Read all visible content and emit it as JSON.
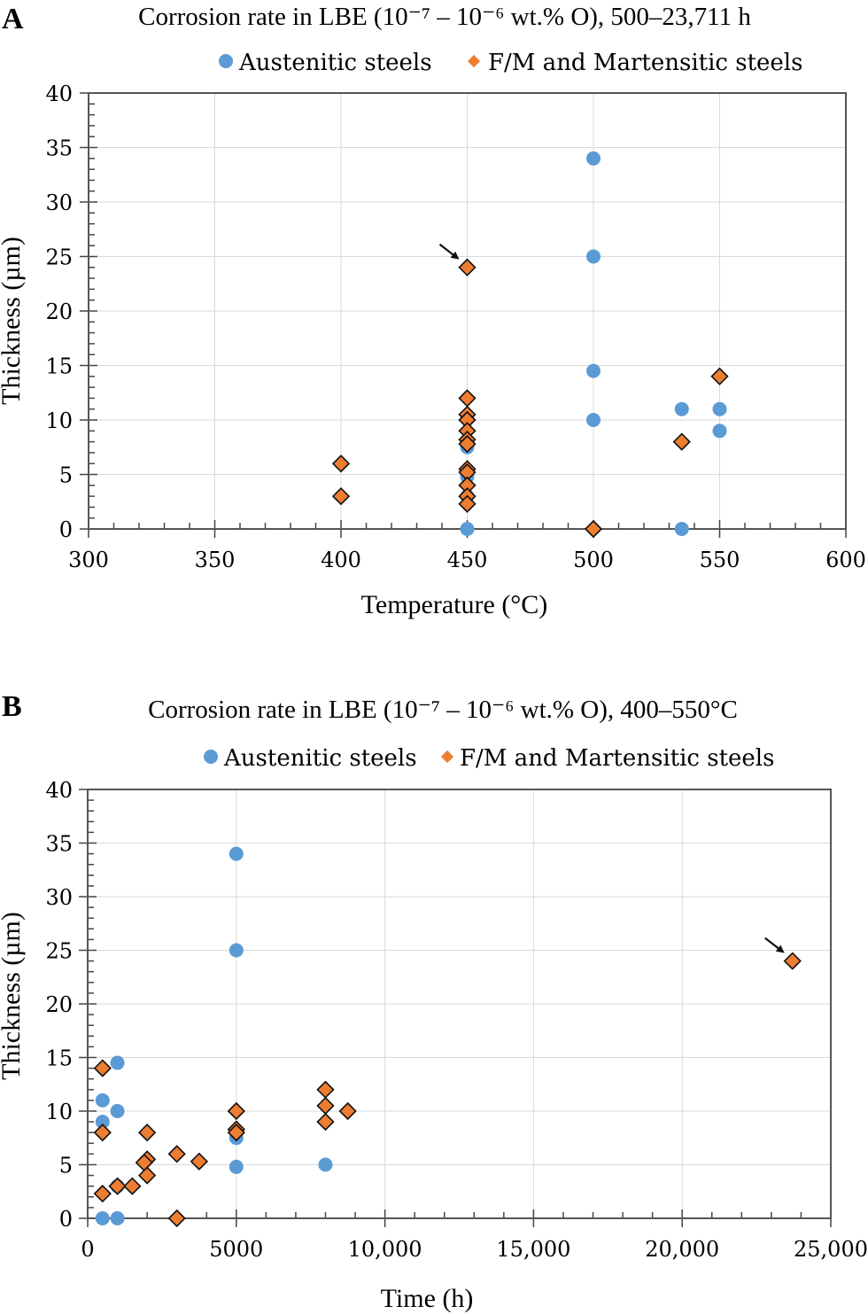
{
  "chart_data": [
    {
      "panel": "A",
      "type": "scatter",
      "title": "Corrosion rate in LBE (10⁻⁷ – 10⁻⁶ wt.% O), 500–23,711 h",
      "xlabel": "Temperature (°C)",
      "ylabel": "Thickness (µm)",
      "xlim": [
        300,
        600
      ],
      "ylim": [
        0,
        40
      ],
      "x_ticks": [
        300,
        350,
        400,
        450,
        500,
        550,
        600
      ],
      "x_tick_labels": [
        "300",
        "350",
        "400",
        "450",
        "500",
        "550",
        "600"
      ],
      "x_minor_step": 10,
      "y_ticks": [
        0,
        5,
        10,
        15,
        20,
        25,
        30,
        35,
        40
      ],
      "y_tick_labels": [
        "0",
        "5",
        "10",
        "15",
        "20",
        "25",
        "30",
        "35",
        "40"
      ],
      "y_minor_step": 1,
      "grid": true,
      "legend": "top-center",
      "series": [
        {
          "name": "Austenitic steels",
          "marker": "circle",
          "color": "#5B9BD5",
          "points": [
            [
              450,
              7.5
            ],
            [
              450,
              4.8
            ],
            [
              450,
              3.0
            ],
            [
              450,
              0
            ],
            [
              500,
              34
            ],
            [
              500,
              25
            ],
            [
              500,
              14.5
            ],
            [
              500,
              10
            ],
            [
              535,
              11
            ],
            [
              535,
              0
            ],
            [
              550,
              11
            ],
            [
              550,
              9
            ]
          ]
        },
        {
          "name": "F/M and Martensitic steels",
          "marker": "diamond",
          "color": "#ED7D31",
          "points": [
            [
              400,
              6
            ],
            [
              400,
              3
            ],
            [
              450,
              24
            ],
            [
              450,
              12
            ],
            [
              450,
              10.5
            ],
            [
              450,
              10
            ],
            [
              450,
              9
            ],
            [
              450,
              8.2
            ],
            [
              450,
              7.8
            ],
            [
              450,
              5.5
            ],
            [
              450,
              5.2
            ],
            [
              450,
              4
            ],
            [
              450,
              3
            ],
            [
              450,
              2.3
            ],
            [
              500,
              0
            ],
            [
              535,
              8
            ],
            [
              550,
              14
            ]
          ]
        }
      ],
      "annotations": [
        {
          "type": "arrow",
          "points_to": [
            450,
            24
          ]
        }
      ]
    },
    {
      "panel": "B",
      "type": "scatter",
      "title": "Corrosion rate in LBE (10⁻⁷ – 10⁻⁶ wt.% O), 400–550°C",
      "xlabel": "Time (h)",
      "ylabel": "Thickness (µm)",
      "xlim": [
        0,
        25000
      ],
      "ylim": [
        0,
        40
      ],
      "x_ticks": [
        0,
        5000,
        10000,
        15000,
        20000,
        25000
      ],
      "x_tick_labels": [
        "0",
        "5000",
        "10,000",
        "15,000",
        "20,000",
        "25,000"
      ],
      "x_minor_step": 1000,
      "y_ticks": [
        0,
        5,
        10,
        15,
        20,
        25,
        30,
        35,
        40
      ],
      "y_tick_labels": [
        "0",
        "5",
        "10",
        "15",
        "20",
        "25",
        "30",
        "35",
        "40"
      ],
      "y_minor_step": 1,
      "grid": true,
      "legend": "top-center",
      "series": [
        {
          "name": "Austenitic steels",
          "marker": "circle",
          "color": "#5B9BD5",
          "points": [
            [
              500,
              11
            ],
            [
              500,
              9
            ],
            [
              500,
              0
            ],
            [
              1000,
              14.5
            ],
            [
              1000,
              10
            ],
            [
              1000,
              3
            ],
            [
              1000,
              0
            ],
            [
              5000,
              34
            ],
            [
              5000,
              25
            ],
            [
              5000,
              7.5
            ],
            [
              5000,
              4.8
            ],
            [
              8000,
              5
            ]
          ]
        },
        {
          "name": "F/M and Martensitic steels",
          "marker": "diamond",
          "color": "#ED7D31",
          "points": [
            [
              500,
              14
            ],
            [
              500,
              8
            ],
            [
              500,
              2.3
            ],
            [
              1000,
              3
            ],
            [
              1500,
              3
            ],
            [
              2000,
              8
            ],
            [
              2000,
              5.5
            ],
            [
              1900,
              5.2
            ],
            [
              2000,
              4
            ],
            [
              3000,
              6
            ],
            [
              3000,
              0
            ],
            [
              3750,
              5.3
            ],
            [
              5000,
              10
            ],
            [
              5000,
              8.3
            ],
            [
              5000,
              8
            ],
            [
              8000,
              12
            ],
            [
              8000,
              10.5
            ],
            [
              8000,
              9
            ],
            [
              8750,
              10
            ],
            [
              23711,
              24
            ]
          ]
        }
      ],
      "annotations": [
        {
          "type": "arrow",
          "points_to": [
            23711,
            24
          ]
        }
      ]
    }
  ]
}
